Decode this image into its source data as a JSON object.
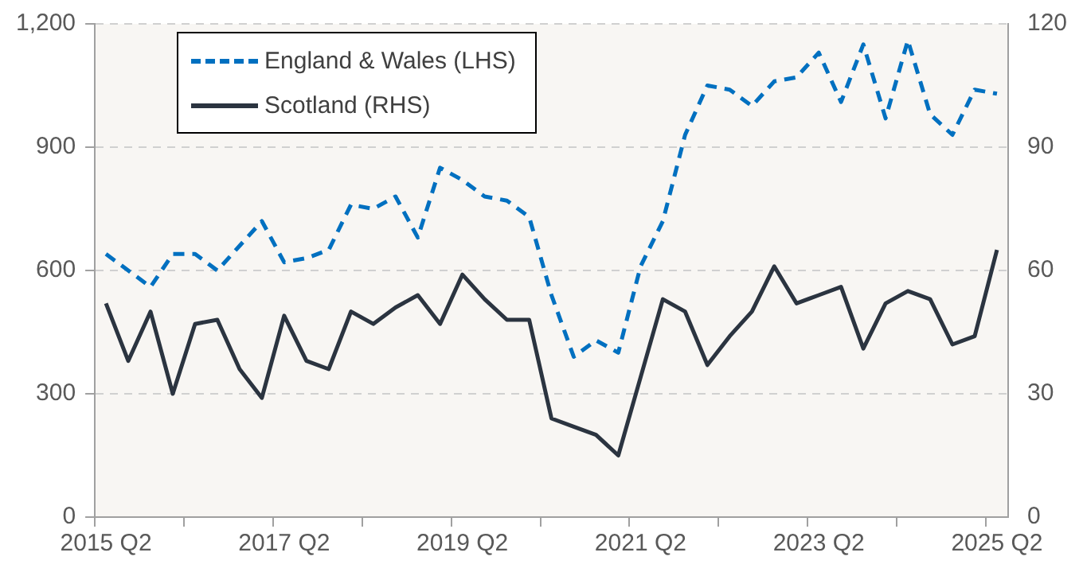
{
  "chart_data": {
    "type": "line",
    "categories": [
      "2015 Q2",
      null,
      null,
      null,
      null,
      null,
      null,
      null,
      "2017 Q2",
      null,
      null,
      null,
      null,
      null,
      null,
      null,
      "2019 Q2",
      null,
      null,
      null,
      null,
      null,
      null,
      null,
      "2021 Q2",
      null,
      null,
      null,
      null,
      null,
      null,
      null,
      "2023 Q2",
      null,
      null,
      null,
      null,
      null,
      null,
      null,
      "2025 Q2"
    ],
    "series": [
      {
        "name": "England & Wales (LHS)",
        "color": "#0070c0",
        "line_style": "dashed",
        "values": [
          640,
          600,
          560,
          640,
          640,
          600,
          660,
          720,
          620,
          630,
          650,
          760,
          750,
          780,
          680,
          850,
          820,
          780,
          770,
          730,
          540,
          390,
          430,
          400,
          610,
          720,
          930,
          1050,
          1040,
          1000,
          1060,
          1070,
          1130,
          1010,
          1150,
          970,
          1160,
          980,
          930,
          1040,
          1030
        ]
      },
      {
        "name": "Scotland (RHS)",
        "color": "#2b3440",
        "line_style": "solid",
        "axis": "y2",
        "values": [
          52,
          38,
          50,
          30,
          47,
          48,
          36,
          29,
          49,
          38,
          36,
          50,
          47,
          51,
          54,
          47,
          59,
          53,
          48,
          48,
          24,
          22,
          20,
          15,
          34,
          53,
          50,
          37,
          44,
          50,
          61,
          52,
          54,
          56,
          41,
          52,
          55,
          53,
          42,
          44,
          65
        ]
      }
    ],
    "ylim": [
      0,
      1200
    ],
    "yticks": [
      0,
      300,
      600,
      900,
      {
        "value": 1200,
        "label": "1,200"
      }
    ],
    "y2lim": [
      0,
      120
    ],
    "y2ticks": [
      0,
      30,
      60,
      90,
      120
    ],
    "grid": "y",
    "legend": "top left",
    "marker": "none"
  }
}
